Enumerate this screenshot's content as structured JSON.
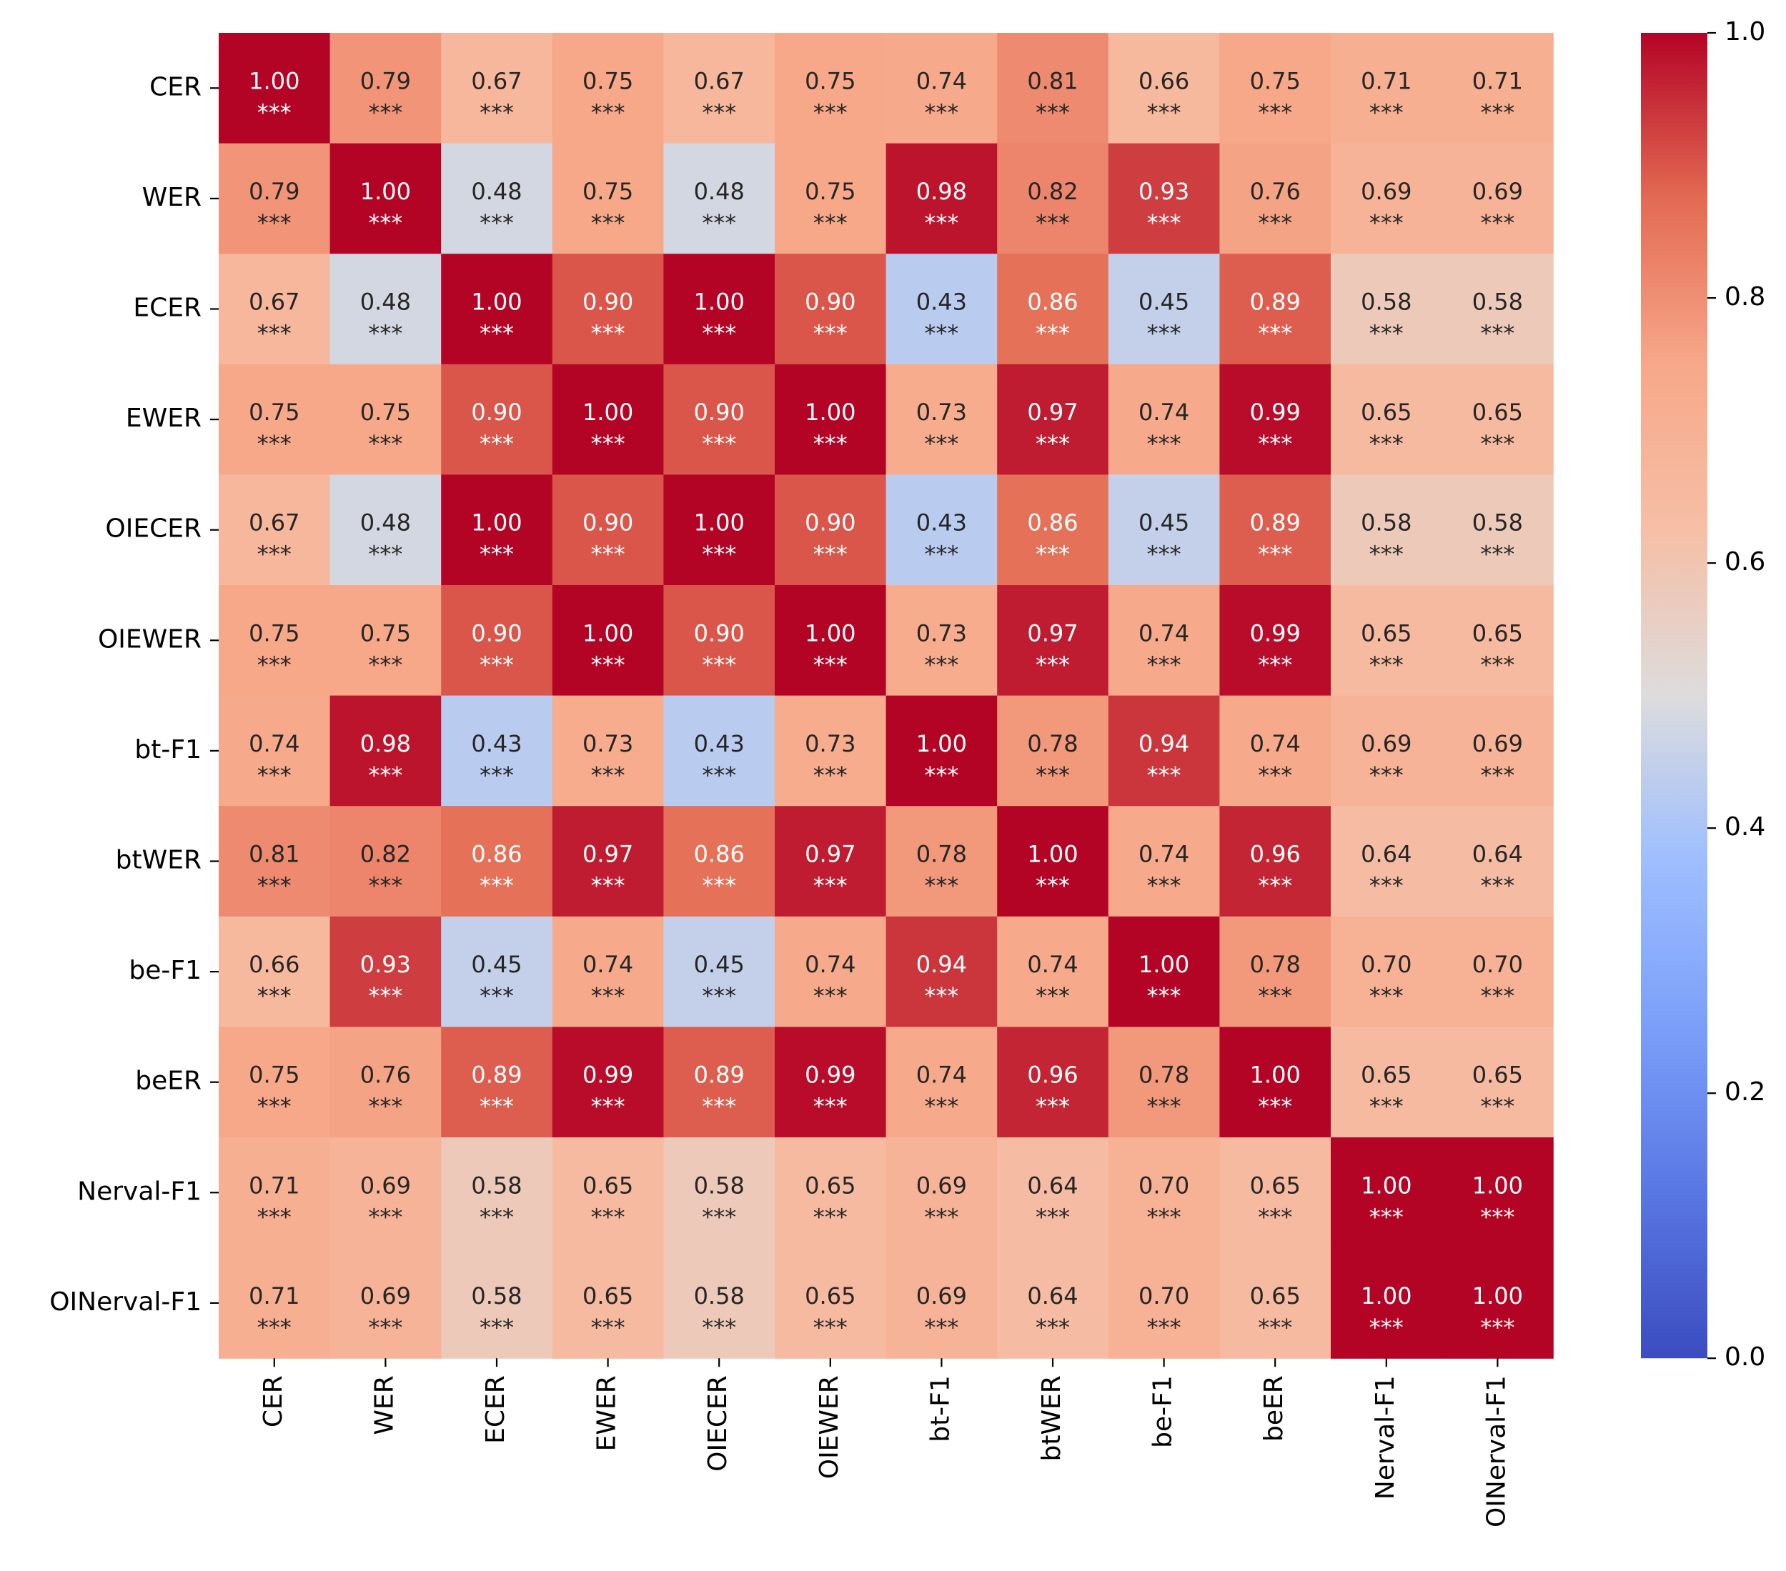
{
  "chart_data": {
    "type": "heatmap",
    "rows": [
      "CER",
      "WER",
      "ECER",
      "EWER",
      "OIECER",
      "OIEWER",
      "bt-F1",
      "btWER",
      "be-F1",
      "beER",
      "Nerval-F1",
      "OINerval-F1"
    ],
    "columns": [
      "CER",
      "WER",
      "ECER",
      "EWER",
      "OIECER",
      "OIEWER",
      "bt-F1",
      "btWER",
      "be-F1",
      "beER",
      "Nerval-F1",
      "OINerval-F1"
    ],
    "values": [
      [
        1.0,
        0.79,
        0.67,
        0.75,
        0.67,
        0.75,
        0.74,
        0.81,
        0.66,
        0.75,
        0.71,
        0.71
      ],
      [
        0.79,
        1.0,
        0.48,
        0.75,
        0.48,
        0.75,
        0.98,
        0.82,
        0.93,
        0.76,
        0.69,
        0.69
      ],
      [
        0.67,
        0.48,
        1.0,
        0.9,
        1.0,
        0.9,
        0.43,
        0.86,
        0.45,
        0.89,
        0.58,
        0.58
      ],
      [
        0.75,
        0.75,
        0.9,
        1.0,
        0.9,
        1.0,
        0.73,
        0.97,
        0.74,
        0.99,
        0.65,
        0.65
      ],
      [
        0.67,
        0.48,
        1.0,
        0.9,
        1.0,
        0.9,
        0.43,
        0.86,
        0.45,
        0.89,
        0.58,
        0.58
      ],
      [
        0.75,
        0.75,
        0.9,
        1.0,
        0.9,
        1.0,
        0.73,
        0.97,
        0.74,
        0.99,
        0.65,
        0.65
      ],
      [
        0.74,
        0.98,
        0.43,
        0.73,
        0.43,
        0.73,
        1.0,
        0.78,
        0.94,
        0.74,
        0.69,
        0.69
      ],
      [
        0.81,
        0.82,
        0.86,
        0.97,
        0.86,
        0.97,
        0.78,
        1.0,
        0.74,
        0.96,
        0.64,
        0.64
      ],
      [
        0.66,
        0.93,
        0.45,
        0.74,
        0.45,
        0.74,
        0.94,
        0.74,
        1.0,
        0.78,
        0.7,
        0.7
      ],
      [
        0.75,
        0.76,
        0.89,
        0.99,
        0.89,
        0.99,
        0.74,
        0.96,
        0.78,
        1.0,
        0.65,
        0.65
      ],
      [
        0.71,
        0.69,
        0.58,
        0.65,
        0.58,
        0.65,
        0.69,
        0.64,
        0.7,
        0.65,
        1.0,
        1.0
      ],
      [
        0.71,
        0.69,
        0.58,
        0.65,
        0.58,
        0.65,
        0.69,
        0.64,
        0.7,
        0.65,
        1.0,
        1.0
      ]
    ],
    "significance": "***",
    "colormap": "coolwarm",
    "value_range": [
      0.0,
      1.0
    ],
    "colorbar_ticks": [
      "0.0",
      "0.2",
      "0.4",
      "0.6",
      "0.8",
      "1.0"
    ],
    "colorbar_placement": "right",
    "title": "",
    "xlabel": "",
    "ylabel": ""
  }
}
